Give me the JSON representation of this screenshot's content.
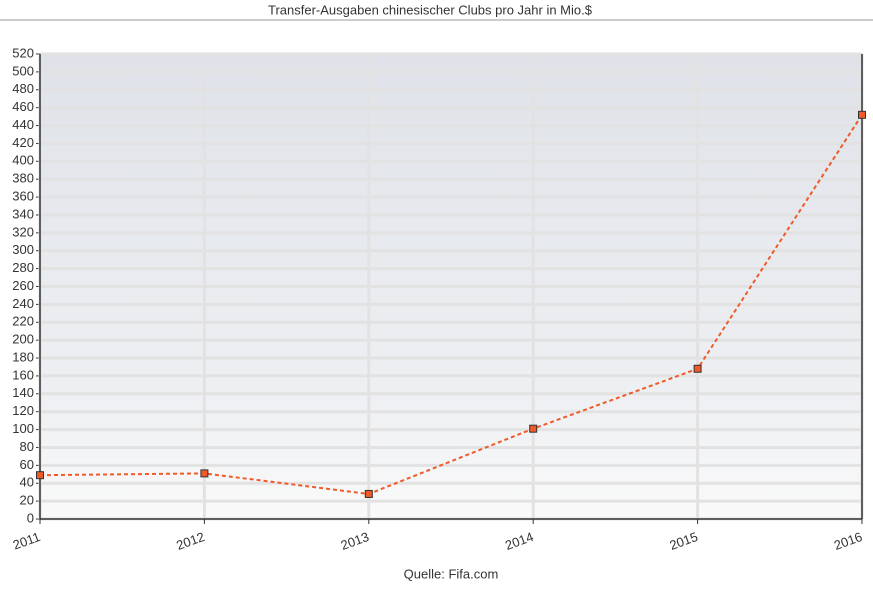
{
  "chart_data": {
    "type": "line",
    "title": "Transfer-Ausgaben chinesischer Clubs pro Jahr in Mio.$",
    "categories": [
      "2011",
      "2012",
      "2013",
      "2014",
      "2015",
      "2016"
    ],
    "series": [
      {
        "name": "Transfer-Ausgaben",
        "color": "#f05a28",
        "values": [
          49,
          51,
          28,
          101,
          168,
          452
        ]
      }
    ],
    "ylim": [
      0,
      520
    ],
    "yticks": [
      0,
      20,
      40,
      60,
      80,
      100,
      120,
      140,
      160,
      180,
      200,
      220,
      240,
      260,
      280,
      300,
      320,
      340,
      360,
      380,
      400,
      420,
      440,
      460,
      480,
      500,
      520
    ],
    "grid": true,
    "source": "Quelle: Fifa.com"
  }
}
